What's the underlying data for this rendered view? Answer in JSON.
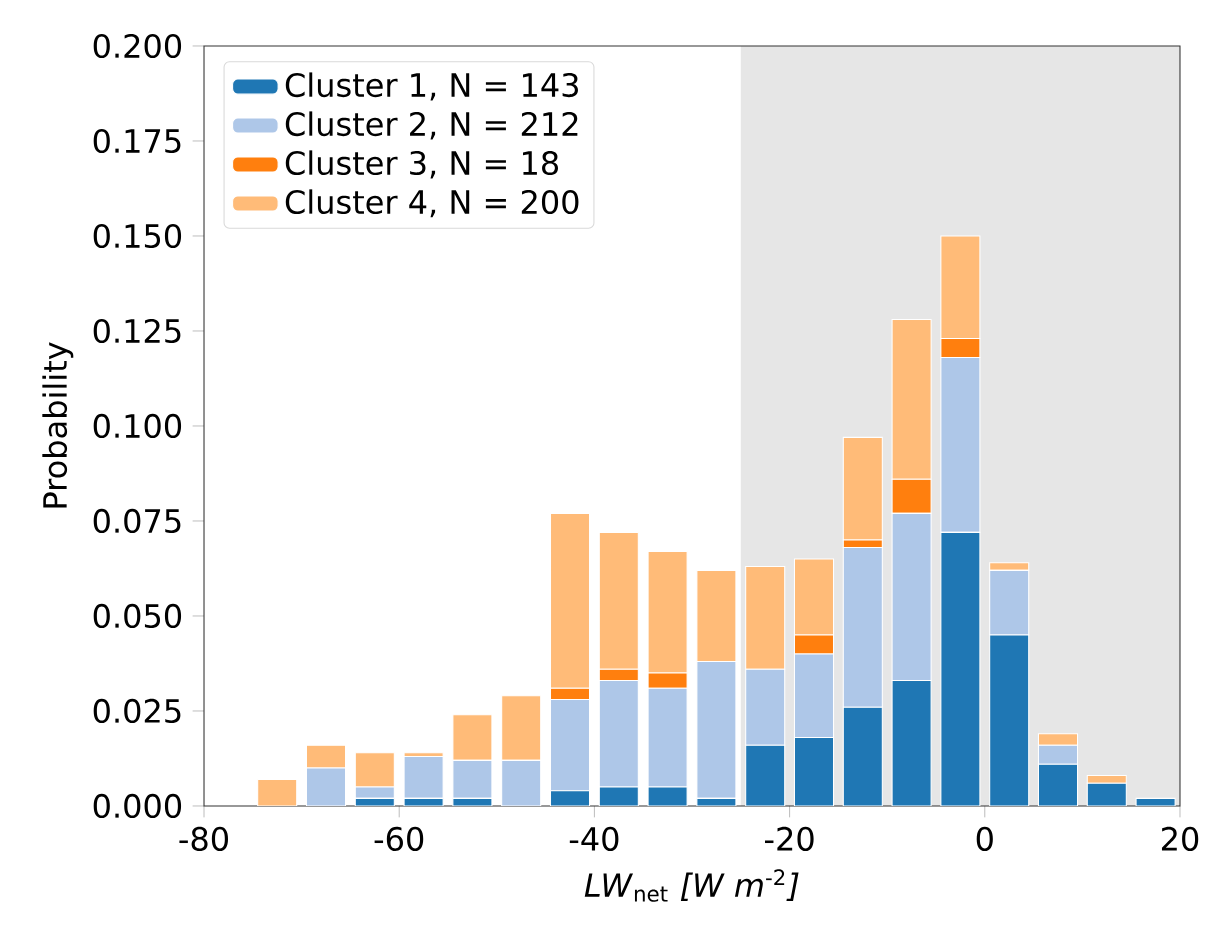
{
  "chart_data": {
    "type": "bar",
    "stacked": true,
    "xlabel": "*LW*$_{net}$ *[W m*$^{-2}$*]*",
    "ylabel": "Probability",
    "x": [
      -72.5,
      -67.5,
      -62.5,
      -57.5,
      -52.5,
      -47.5,
      -42.5,
      -37.5,
      -32.5,
      -27.5,
      -22.5,
      -17.5,
      -12.5,
      -7.5,
      -2.5,
      2.5,
      7.5,
      12.5,
      17.5
    ],
    "series": [
      {
        "name": "Cluster 1, N = 143",
        "color": "#1f77b4",
        "values": [
          0,
          0,
          0.002,
          0.002,
          0.002,
          0,
          0.004,
          0.005,
          0.005,
          0.002,
          0.016,
          0.018,
          0.026,
          0.033,
          0.072,
          0.045,
          0.011,
          0.006,
          0.002
        ]
      },
      {
        "name": "Cluster 2, N = 212",
        "color": "#aec7e8",
        "values": [
          0,
          0.01,
          0.003,
          0.011,
          0.01,
          0.012,
          0.024,
          0.028,
          0.026,
          0.036,
          0.02,
          0.022,
          0.042,
          0.044,
          0.046,
          0.017,
          0.005,
          0,
          0
        ]
      },
      {
        "name": "Cluster 3, N = 18",
        "color": "#ff7f0e",
        "values": [
          0,
          0,
          0,
          0,
          0,
          0,
          0.003,
          0.003,
          0.004,
          0,
          0,
          0.005,
          0.002,
          0.009,
          0.005,
          0,
          0,
          0,
          0
        ]
      },
      {
        "name": "Cluster 4, N = 200",
        "color": "#ffbb78",
        "values": [
          0.007,
          0.006,
          0.009,
          0.001,
          0.012,
          0.017,
          0.046,
          0.036,
          0.032,
          0.024,
          0.027,
          0.02,
          0.027,
          0.042,
          0.027,
          0.002,
          0.003,
          0.002,
          0
        ]
      }
    ],
    "xlim": [
      -80,
      20
    ],
    "xticks": [
      -80,
      -60,
      -40,
      -20,
      0,
      20
    ],
    "ylim": [
      0,
      0.2
    ],
    "yticks": [
      {
        "value": 0,
        "label": "0.000"
      },
      {
        "value": 0.025,
        "label": "0.025"
      },
      {
        "value": 0.05,
        "label": "0.050"
      },
      {
        "value": 0.075,
        "label": "0.075"
      },
      {
        "value": 0.1,
        "label": "0.100"
      },
      {
        "value": 0.125,
        "label": "0.125"
      },
      {
        "value": 0.15,
        "label": "0.150"
      },
      {
        "value": 0.175,
        "label": "0.175"
      },
      {
        "value": 0.2,
        "label": "0.200"
      }
    ],
    "bands": [
      {
        "axis": "x",
        "from": -25,
        "to": 20,
        "color": "#e6e6e6"
      }
    ],
    "legend": "top left",
    "grid": false
  }
}
